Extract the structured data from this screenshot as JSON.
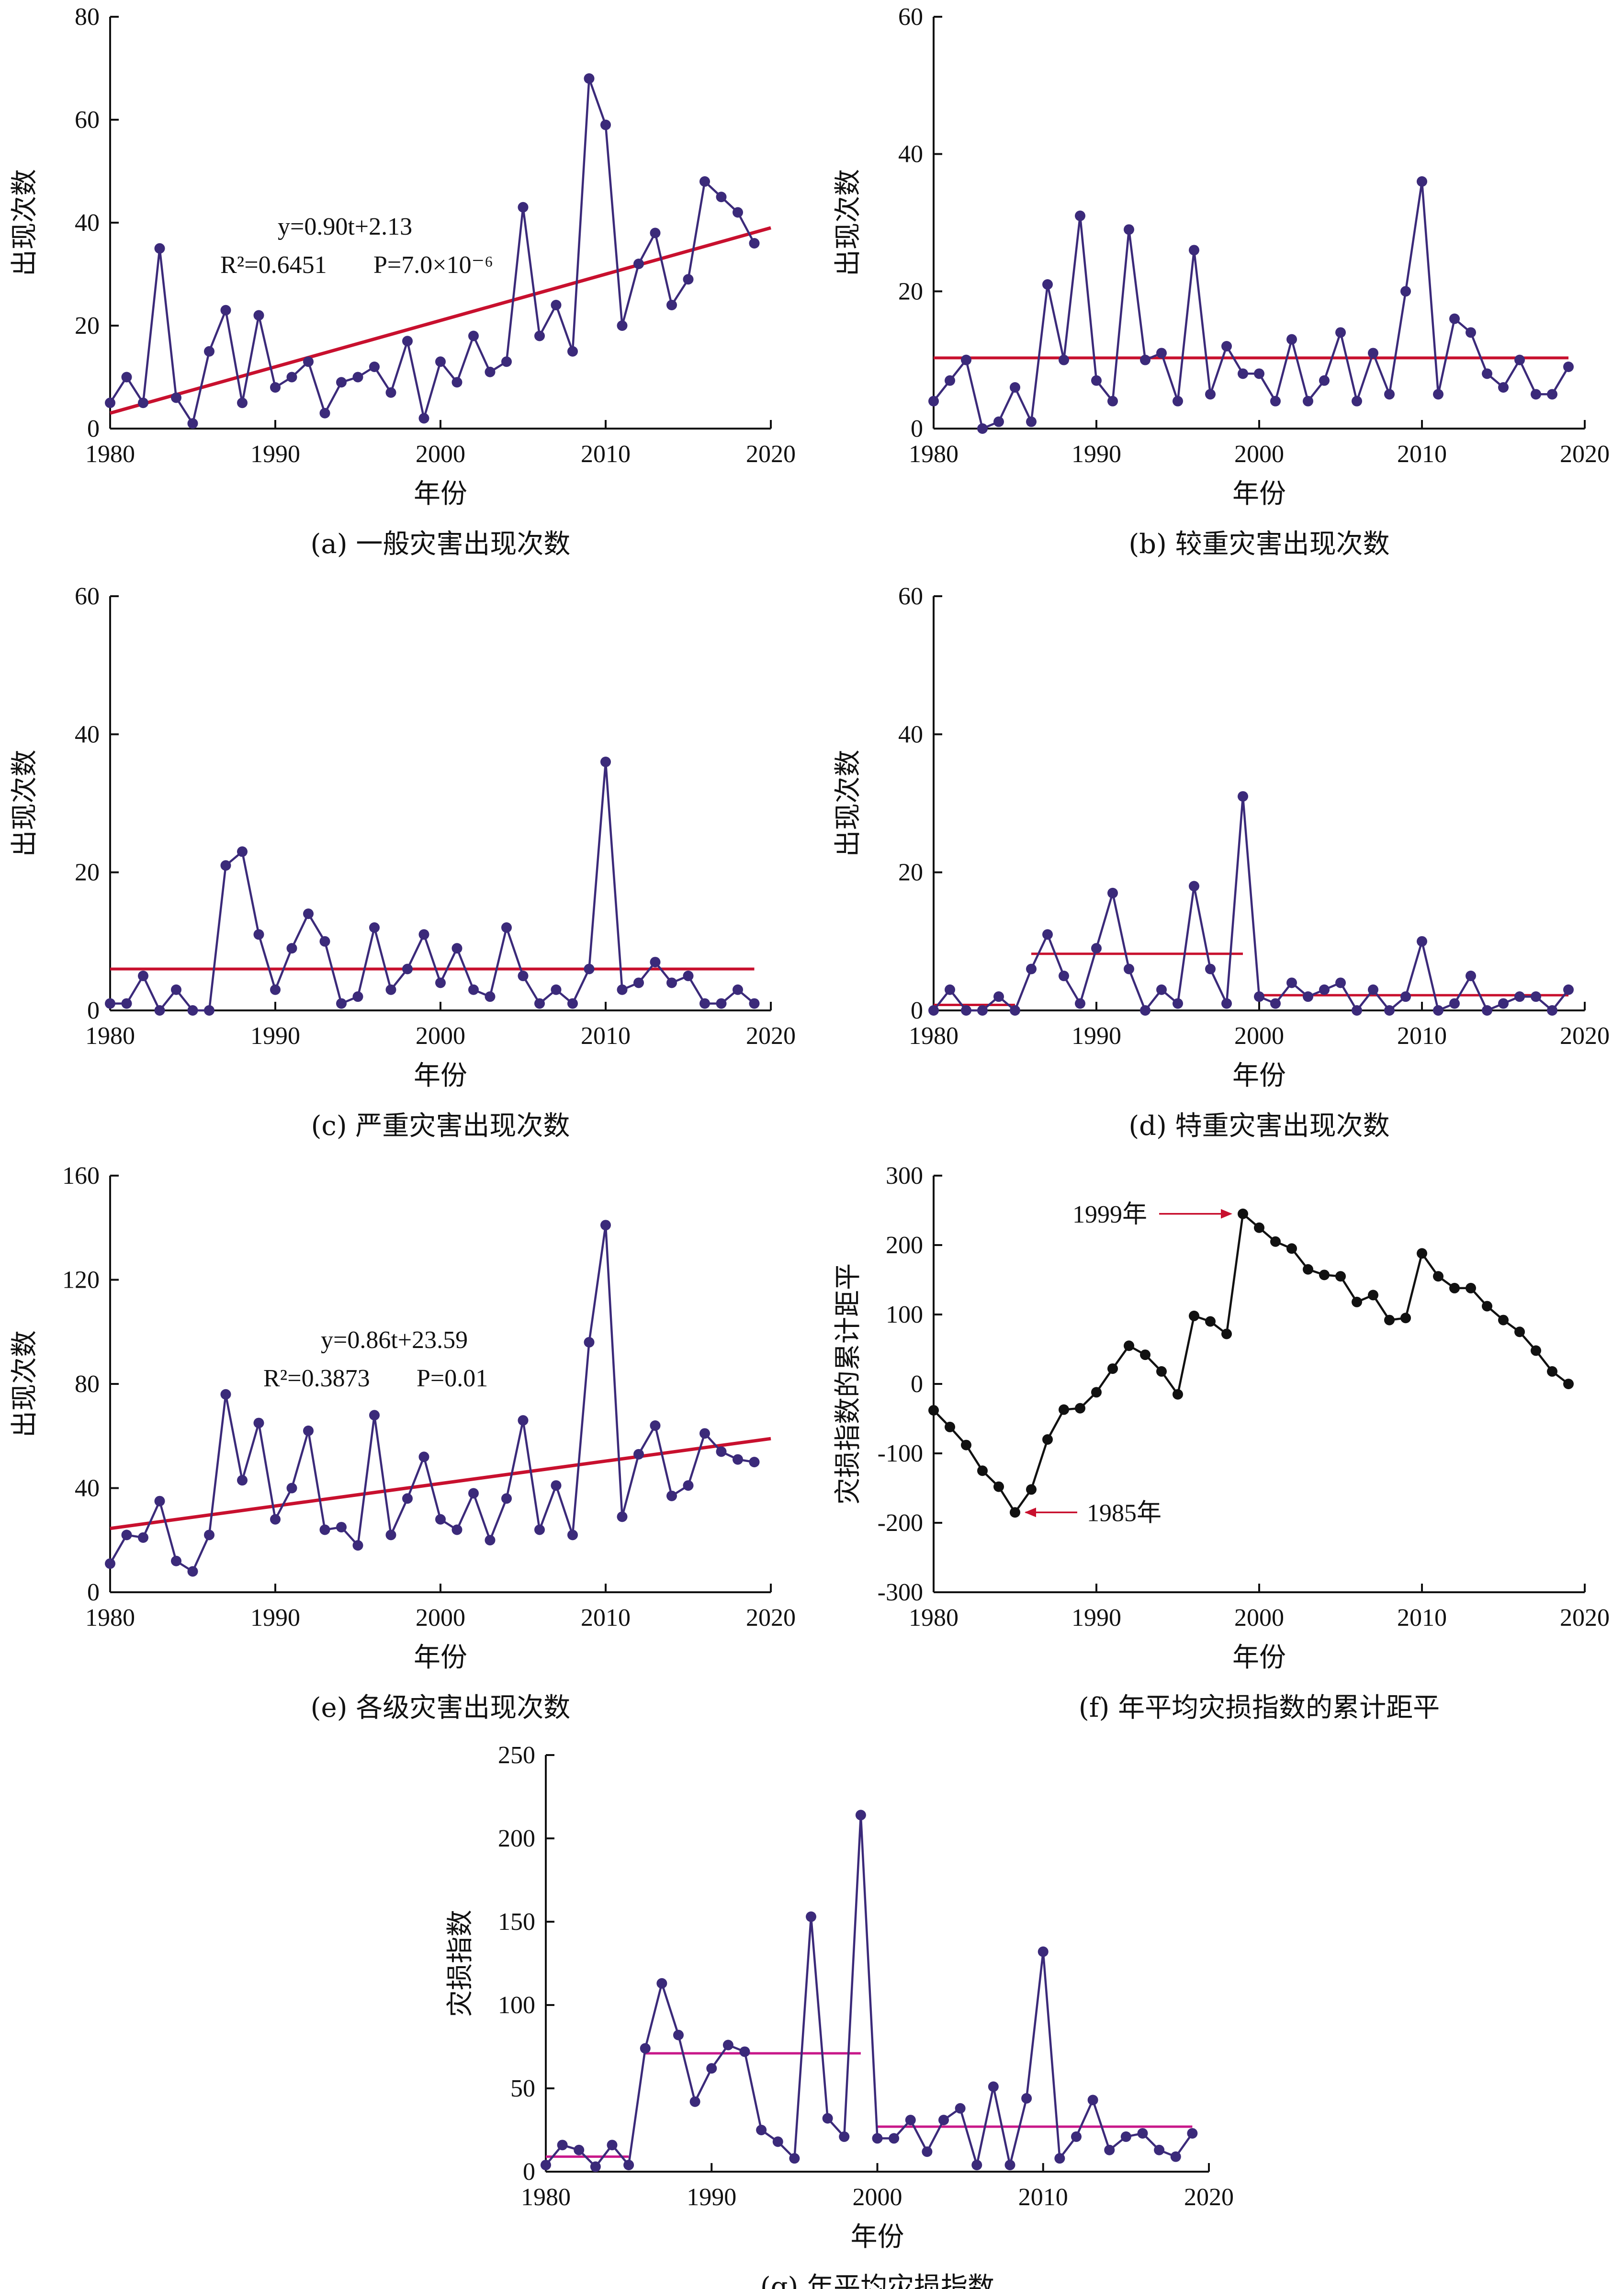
{
  "colors": {
    "series": "#3b2a7a",
    "black_series": "#111111",
    "trend": "#c8102e",
    "mean_magenta": "#c8188a",
    "arrow": "#c8102e"
  },
  "chart_data": [
    {
      "id": "a",
      "type": "line",
      "caption": "(a) 一般灾害出现次数",
      "xlabel": "年份",
      "ylabel": "出现次数",
      "xlim": [
        1980,
        2020
      ],
      "ylim": [
        0,
        80
      ],
      "xticks": [
        1980,
        1990,
        2000,
        2010,
        2020
      ],
      "yticks": [
        0,
        20,
        40,
        60,
        80
      ],
      "x": [
        1980,
        1981,
        1982,
        1983,
        1984,
        1985,
        1986,
        1987,
        1988,
        1989,
        1990,
        1991,
        1992,
        1993,
        1994,
        1995,
        1996,
        1997,
        1998,
        1999,
        2000,
        2001,
        2002,
        2003,
        2004,
        2005,
        2006,
        2007,
        2008,
        2009,
        2010,
        2011,
        2012,
        2013,
        2014,
        2015,
        2016,
        2017,
        2018,
        2019
      ],
      "values": [
        5,
        10,
        5,
        35,
        6,
        1,
        15,
        23,
        5,
        22,
        8,
        10,
        13,
        3,
        9,
        10,
        12,
        7,
        17,
        2,
        13,
        9,
        18,
        11,
        13,
        43,
        18,
        24,
        15,
        68,
        59,
        20,
        32,
        38,
        24,
        29,
        48,
        45,
        42,
        36
      ],
      "trend": {
        "x": [
          1980,
          2020
        ],
        "y": [
          3.0,
          39.0
        ]
      },
      "annotation": {
        "eq": "y=0.90t+2.13",
        "r2": "R²=0.6451",
        "p": "P=7.0×10⁻⁶"
      }
    },
    {
      "id": "b",
      "type": "line",
      "caption": "(b) 较重灾害出现次数",
      "xlabel": "年份",
      "ylabel": "出现次数",
      "xlim": [
        1980,
        2020
      ],
      "ylim": [
        0,
        60
      ],
      "xticks": [
        1980,
        1990,
        2000,
        2010,
        2020
      ],
      "yticks": [
        0,
        20,
        40,
        60
      ],
      "x": [
        1980,
        1981,
        1982,
        1983,
        1984,
        1985,
        1986,
        1987,
        1988,
        1989,
        1990,
        1991,
        1992,
        1993,
        1994,
        1995,
        1996,
        1997,
        1998,
        1999,
        2000,
        2001,
        2002,
        2003,
        2004,
        2005,
        2006,
        2007,
        2008,
        2009,
        2010,
        2011,
        2012,
        2013,
        2014,
        2015,
        2016,
        2017,
        2018,
        2019
      ],
      "values": [
        4,
        7,
        10,
        0,
        1,
        6,
        1,
        21,
        10,
        31,
        7,
        4,
        29,
        10,
        11,
        4,
        26,
        5,
        12,
        8,
        8,
        4,
        13,
        4,
        7,
        14,
        4,
        11,
        5,
        20,
        36,
        5,
        16,
        14,
        8,
        6,
        10,
        5,
        5,
        9
      ],
      "mean_line": {
        "x": [
          1980,
          2019
        ],
        "y": 10.3
      }
    },
    {
      "id": "c",
      "type": "line",
      "caption": "(c) 严重灾害出现次数",
      "xlabel": "年份",
      "ylabel": "出现次数",
      "xlim": [
        1980,
        2020
      ],
      "ylim": [
        0,
        60
      ],
      "xticks": [
        1980,
        1990,
        2000,
        2010,
        2020
      ],
      "yticks": [
        0,
        20,
        40,
        60
      ],
      "x": [
        1980,
        1981,
        1982,
        1983,
        1984,
        1985,
        1986,
        1987,
        1988,
        1989,
        1990,
        1991,
        1992,
        1993,
        1994,
        1995,
        1996,
        1997,
        1998,
        1999,
        2000,
        2001,
        2002,
        2003,
        2004,
        2005,
        2006,
        2007,
        2008,
        2009,
        2010,
        2011,
        2012,
        2013,
        2014,
        2015,
        2016,
        2017,
        2018,
        2019
      ],
      "values": [
        1,
        1,
        5,
        0,
        3,
        0,
        0,
        21,
        23,
        11,
        3,
        9,
        14,
        10,
        1,
        2,
        12,
        3,
        6,
        11,
        4,
        9,
        3,
        2,
        12,
        5,
        1,
        3,
        1,
        6,
        36,
        3,
        4,
        7,
        4,
        5,
        1,
        1,
        3,
        1
      ],
      "mean_line": {
        "x": [
          1980,
          2019
        ],
        "y": 6.0
      }
    },
    {
      "id": "d",
      "type": "line",
      "caption": "(d) 特重灾害出现次数",
      "xlabel": "年份",
      "ylabel": "出现次数",
      "xlim": [
        1980,
        2020
      ],
      "ylim": [
        0,
        60
      ],
      "xticks": [
        1980,
        1990,
        2000,
        2010,
        2020
      ],
      "yticks": [
        0,
        20,
        40,
        60
      ],
      "x": [
        1980,
        1981,
        1982,
        1983,
        1984,
        1985,
        1986,
        1987,
        1988,
        1989,
        1990,
        1991,
        1992,
        1993,
        1994,
        1995,
        1996,
        1997,
        1998,
        1999,
        2000,
        2001,
        2002,
        2003,
        2004,
        2005,
        2006,
        2007,
        2008,
        2009,
        2010,
        2011,
        2012,
        2013,
        2014,
        2015,
        2016,
        2017,
        2018,
        2019
      ],
      "values": [
        0,
        3,
        0,
        0,
        2,
        0,
        6,
        11,
        5,
        1,
        9,
        17,
        6,
        0,
        3,
        1,
        18,
        6,
        1,
        31,
        2,
        1,
        4,
        2,
        3,
        4,
        0,
        3,
        0,
        2,
        10,
        0,
        1,
        5,
        0,
        1,
        2,
        2,
        0,
        3
      ],
      "mean_segments": [
        {
          "x": [
            1980,
            1985
          ],
          "y": 0.8
        },
        {
          "x": [
            1986,
            1999
          ],
          "y": 8.2
        },
        {
          "x": [
            2000,
            2019
          ],
          "y": 2.2
        }
      ]
    },
    {
      "id": "e",
      "type": "line",
      "caption": "(e) 各级灾害出现次数",
      "xlabel": "年份",
      "ylabel": "出现次数",
      "xlim": [
        1980,
        2020
      ],
      "ylim": [
        0,
        160
      ],
      "xticks": [
        1980,
        1990,
        2000,
        2010,
        2020
      ],
      "yticks": [
        0,
        40,
        80,
        120,
        160
      ],
      "x": [
        1980,
        1981,
        1982,
        1983,
        1984,
        1985,
        1986,
        1987,
        1988,
        1989,
        1990,
        1991,
        1992,
        1993,
        1994,
        1995,
        1996,
        1997,
        1998,
        1999,
        2000,
        2001,
        2002,
        2003,
        2004,
        2005,
        2006,
        2007,
        2008,
        2009,
        2010,
        2011,
        2012,
        2013,
        2014,
        2015,
        2016,
        2017,
        2018,
        2019
      ],
      "values": [
        11,
        22,
        21,
        35,
        12,
        8,
        22,
        76,
        43,
        65,
        28,
        40,
        62,
        24,
        25,
        18,
        68,
        22,
        36,
        52,
        28,
        24,
        38,
        20,
        36,
        66,
        24,
        41,
        22,
        96,
        141,
        29,
        53,
        64,
        37,
        41,
        61,
        54,
        51,
        50
      ],
      "trend": {
        "x": [
          1980,
          2020
        ],
        "y": [
          24.5,
          59.0
        ]
      },
      "annotation": {
        "eq": "y=0.86t+23.59",
        "r2": "R²=0.3873",
        "p": "P=0.01"
      }
    },
    {
      "id": "f",
      "type": "line",
      "caption": "(f) 年平均灾损指数的累计距平",
      "xlabel": "年份",
      "ylabel": "灾损指数的累计距平",
      "xlim": [
        1980,
        2020
      ],
      "ylim": [
        -300,
        300
      ],
      "xticks": [
        1980,
        1990,
        2000,
        2010,
        2020
      ],
      "yticks": [
        -300,
        -200,
        -100,
        0,
        100,
        200,
        300
      ],
      "x": [
        1980,
        1981,
        1982,
        1983,
        1984,
        1985,
        1986,
        1987,
        1988,
        1989,
        1990,
        1991,
        1992,
        1993,
        1994,
        1995,
        1996,
        1997,
        1998,
        1999,
        2000,
        2001,
        2002,
        2003,
        2004,
        2005,
        2006,
        2007,
        2008,
        2009,
        2010,
        2011,
        2012,
        2013,
        2014,
        2015,
        2016,
        2017,
        2018,
        2019
      ],
      "values": [
        -38,
        -62,
        -88,
        -125,
        -148,
        -185,
        -152,
        -80,
        -37,
        -35,
        -12,
        22,
        55,
        42,
        18,
        -15,
        98,
        90,
        72,
        245,
        225,
        205,
        195,
        165,
        157,
        155,
        118,
        128,
        92,
        95,
        188,
        155,
        138,
        138,
        112,
        92,
        75,
        48,
        18,
        0
      ],
      "callouts": [
        {
          "text": "1999年",
          "x": 1999,
          "y": 245
        },
        {
          "text": "1985年",
          "x": 1985,
          "y": -185
        }
      ]
    },
    {
      "id": "g",
      "type": "line",
      "caption": "(g) 年平均灾损指数",
      "xlabel": "年份",
      "ylabel": "灾损指数",
      "xlim": [
        1980,
        2020
      ],
      "ylim": [
        0,
        250
      ],
      "xticks": [
        1980,
        1990,
        2000,
        2010,
        2020
      ],
      "yticks": [
        0,
        50,
        100,
        150,
        200,
        250
      ],
      "x": [
        1980,
        1981,
        1982,
        1983,
        1984,
        1985,
        1986,
        1987,
        1988,
        1989,
        1990,
        1991,
        1992,
        1993,
        1994,
        1995,
        1996,
        1997,
        1998,
        1999,
        2000,
        2001,
        2002,
        2003,
        2004,
        2005,
        2006,
        2007,
        2008,
        2009,
        2010,
        2011,
        2012,
        2013,
        2014,
        2015,
        2016,
        2017,
        2018,
        2019
      ],
      "values": [
        4,
        16,
        13,
        3,
        16,
        4,
        74,
        113,
        82,
        42,
        62,
        76,
        72,
        25,
        18,
        8,
        153,
        32,
        21,
        214,
        20,
        20,
        31,
        12,
        31,
        38,
        4,
        51,
        4,
        44,
        132,
        8,
        21,
        43,
        13,
        21,
        23,
        13,
        9,
        23
      ],
      "mean_segments": [
        {
          "x": [
            1980,
            1985
          ],
          "y": 9
        },
        {
          "x": [
            1986,
            1999
          ],
          "y": 71
        },
        {
          "x": [
            2000,
            2019
          ],
          "y": 27
        }
      ]
    }
  ]
}
